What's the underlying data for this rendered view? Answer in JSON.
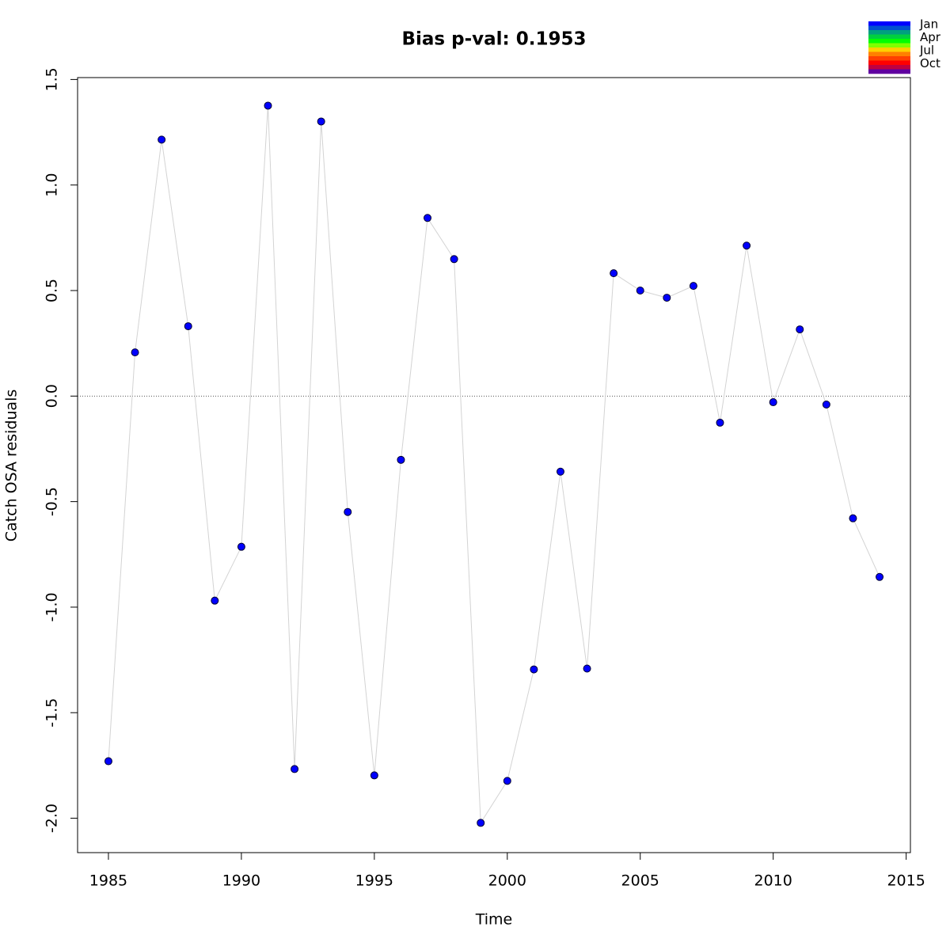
{
  "chart_data": {
    "type": "line",
    "title": "Bias p-val: 0.1953",
    "title_color": "#228b22",
    "x_label": "Time",
    "y_label": "Catch OSA residuals",
    "x": [
      1985,
      1986,
      1987,
      1988,
      1989,
      1990,
      1991,
      1992,
      1993,
      1994,
      1995,
      1996,
      1997,
      1998,
      1999,
      2000,
      2001,
      2002,
      2003,
      2004,
      2005,
      2006,
      2007,
      2008,
      2009,
      2010,
      2011,
      2012,
      2013,
      2014
    ],
    "series": [
      {
        "color": "#0000ff",
        "line_color": "#d3d3d3",
        "values": [
          -1.73,
          0.207,
          1.215,
          0.331,
          -0.969,
          -0.714,
          1.376,
          -1.767,
          1.301,
          -0.549,
          -1.797,
          -0.302,
          0.844,
          0.649,
          -2.022,
          -1.823,
          -1.295,
          -0.358,
          -1.291,
          0.582,
          0.5,
          0.466,
          0.522,
          -0.126,
          0.713,
          -0.029,
          0.316,
          -0.04,
          -0.579,
          -0.857
        ]
      }
    ],
    "xlim": [
      1983.84,
      2015.16
    ],
    "ylim": [
      -2.163,
      1.509
    ],
    "xticks": [
      1985,
      1990,
      1995,
      2000,
      2005,
      2010,
      2015
    ],
    "yticks": [
      {
        "value": -2,
        "label": "-2.0"
      },
      -1.5,
      {
        "value": -1,
        "label": "-1.0"
      },
      -0.5,
      {
        "value": 0,
        "label": "0.0"
      },
      0.5,
      {
        "value": 1,
        "label": "1.0"
      },
      1.5
    ],
    "hline": 0,
    "legend": {
      "labels": [
        "Jan",
        "Apr",
        "Jul",
        "Oct"
      ],
      "colors": [
        "#0000ff",
        "#0050d0",
        "#00a080",
        "#00d040",
        "#00ff00",
        "#80ff00",
        "#ffd000",
        "#ff8000",
        "#ff4000",
        "#ff0000",
        "#c00040",
        "#6000a0"
      ]
    }
  }
}
